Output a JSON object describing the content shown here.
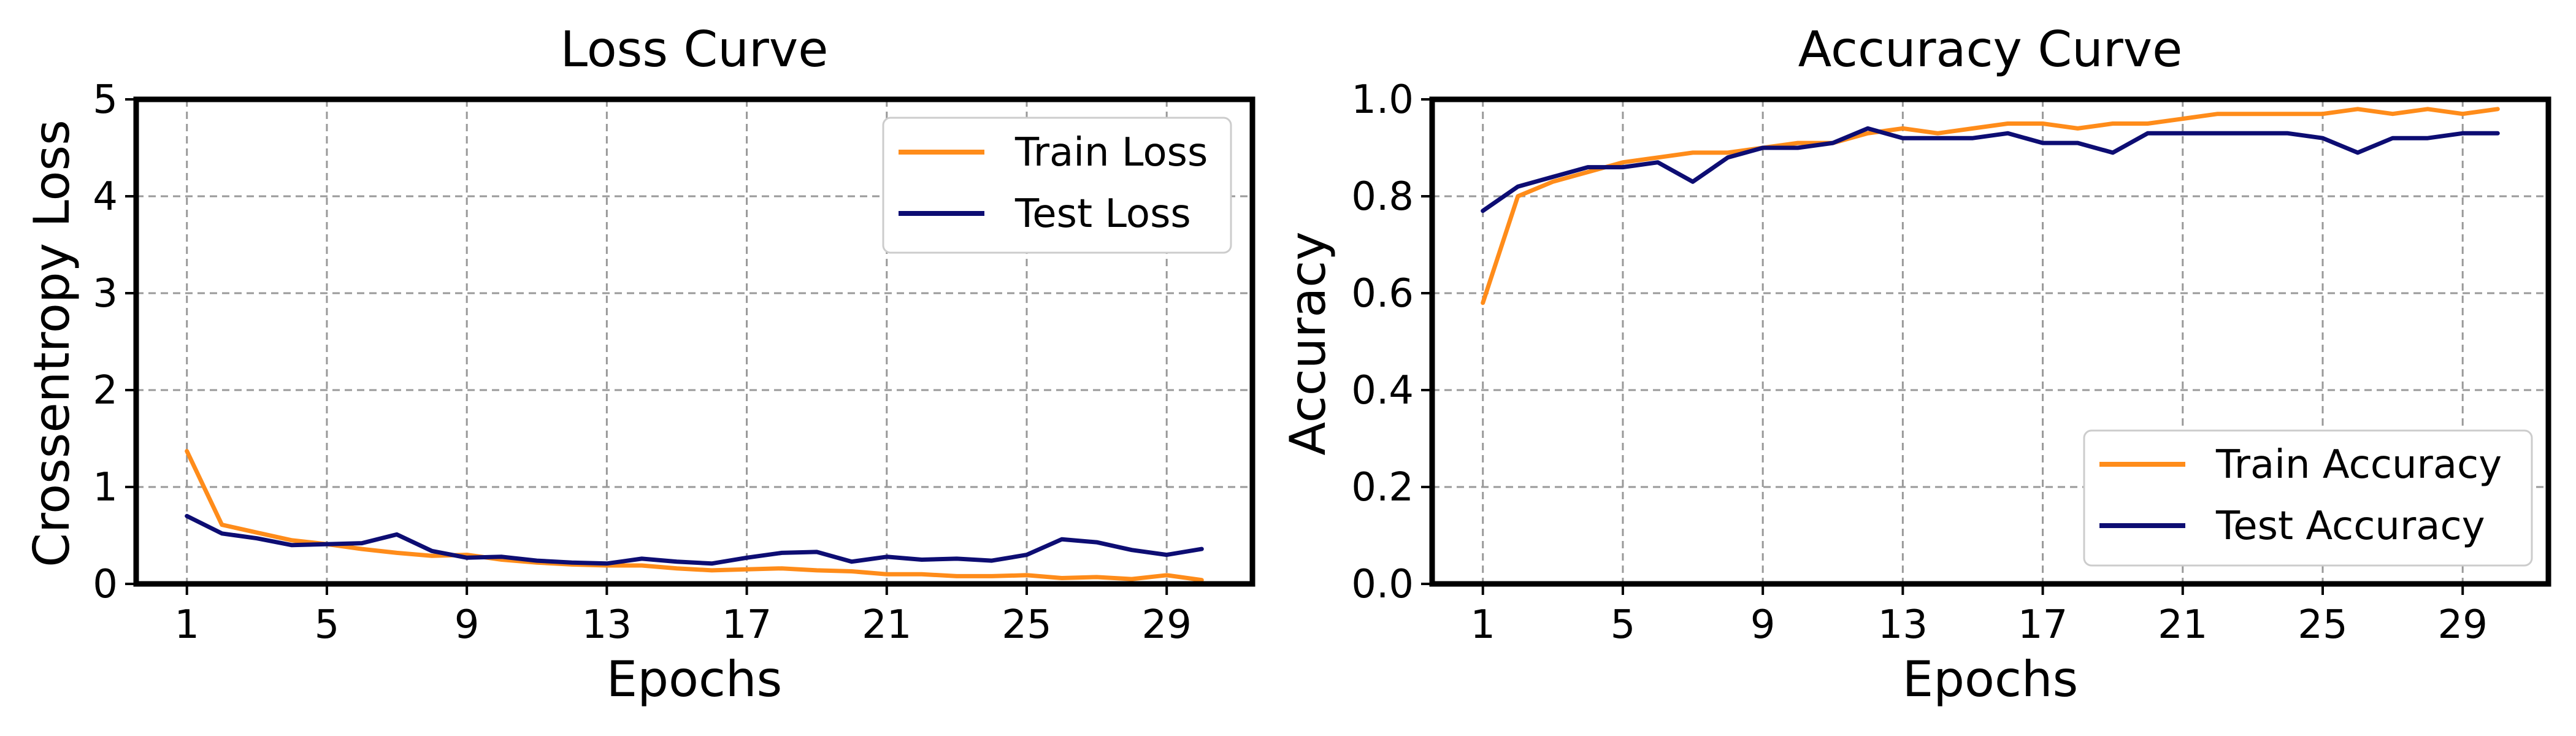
{
  "colors": {
    "train": "#ff8c1a",
    "test": "#0d0d73"
  },
  "chart_data": [
    {
      "type": "line",
      "title": "Loss Curve",
      "xlabel": "Epochs",
      "ylabel": "Crossentropy Loss",
      "x": [
        1,
        2,
        3,
        4,
        5,
        6,
        7,
        8,
        9,
        10,
        11,
        12,
        13,
        14,
        15,
        16,
        17,
        18,
        19,
        20,
        21,
        22,
        23,
        24,
        25,
        26,
        27,
        28,
        29,
        30
      ],
      "xlim": [
        -0.45,
        31.45
      ],
      "ylim": [
        0,
        5
      ],
      "xticks": [
        1,
        5,
        9,
        13,
        17,
        21,
        25,
        29
      ],
      "yticks": [
        0,
        1,
        2,
        3,
        4,
        5
      ],
      "ytick_labels": [
        "0",
        "1",
        "2",
        "3",
        "4",
        "5"
      ],
      "grid": true,
      "legend_position": "upper right",
      "series": [
        {
          "name": "Train Loss",
          "color": "#ff8c1a",
          "values": [
            1.37,
            0.61,
            0.53,
            0.45,
            0.41,
            0.36,
            0.32,
            0.29,
            0.3,
            0.25,
            0.22,
            0.2,
            0.19,
            0.19,
            0.16,
            0.14,
            0.15,
            0.16,
            0.14,
            0.13,
            0.1,
            0.1,
            0.08,
            0.08,
            0.09,
            0.06,
            0.07,
            0.05,
            0.09,
            0.04
          ]
        },
        {
          "name": "Test Loss",
          "color": "#0d0d73",
          "values": [
            0.7,
            0.52,
            0.47,
            0.4,
            0.41,
            0.42,
            0.51,
            0.34,
            0.27,
            0.28,
            0.24,
            0.22,
            0.21,
            0.26,
            0.23,
            0.21,
            0.27,
            0.32,
            0.33,
            0.23,
            0.28,
            0.25,
            0.26,
            0.24,
            0.3,
            0.46,
            0.43,
            0.35,
            0.3,
            0.36
          ]
        }
      ]
    },
    {
      "type": "line",
      "title": "Accuracy Curve",
      "xlabel": "Epochs",
      "ylabel": "Accuracy",
      "x": [
        1,
        2,
        3,
        4,
        5,
        6,
        7,
        8,
        9,
        10,
        11,
        12,
        13,
        14,
        15,
        16,
        17,
        18,
        19,
        20,
        21,
        22,
        23,
        24,
        25,
        26,
        27,
        28,
        29,
        30
      ],
      "xlim": [
        -0.45,
        31.45
      ],
      "ylim": [
        0,
        1.0
      ],
      "xticks": [
        1,
        5,
        9,
        13,
        17,
        21,
        25,
        29
      ],
      "yticks": [
        0,
        0.2,
        0.4,
        0.6,
        0.8,
        1.0
      ],
      "ytick_labels": [
        "0.0",
        "0.2",
        "0.4",
        "0.6",
        "0.8",
        "1.0"
      ],
      "grid": true,
      "legend_position": "lower right",
      "series": [
        {
          "name": "Train Accuracy",
          "color": "#ff8c1a",
          "values": [
            0.58,
            0.8,
            0.83,
            0.85,
            0.87,
            0.88,
            0.89,
            0.89,
            0.9,
            0.91,
            0.91,
            0.93,
            0.94,
            0.93,
            0.94,
            0.95,
            0.95,
            0.94,
            0.95,
            0.95,
            0.96,
            0.97,
            0.97,
            0.97,
            0.97,
            0.98,
            0.97,
            0.98,
            0.97,
            0.98
          ]
        },
        {
          "name": "Test Accuracy",
          "color": "#0d0d73",
          "values": [
            0.77,
            0.82,
            0.84,
            0.86,
            0.86,
            0.87,
            0.83,
            0.88,
            0.9,
            0.9,
            0.91,
            0.94,
            0.92,
            0.92,
            0.92,
            0.93,
            0.91,
            0.91,
            0.89,
            0.93,
            0.93,
            0.93,
            0.93,
            0.93,
            0.92,
            0.89,
            0.92,
            0.92,
            0.93,
            0.93
          ]
        }
      ]
    }
  ]
}
